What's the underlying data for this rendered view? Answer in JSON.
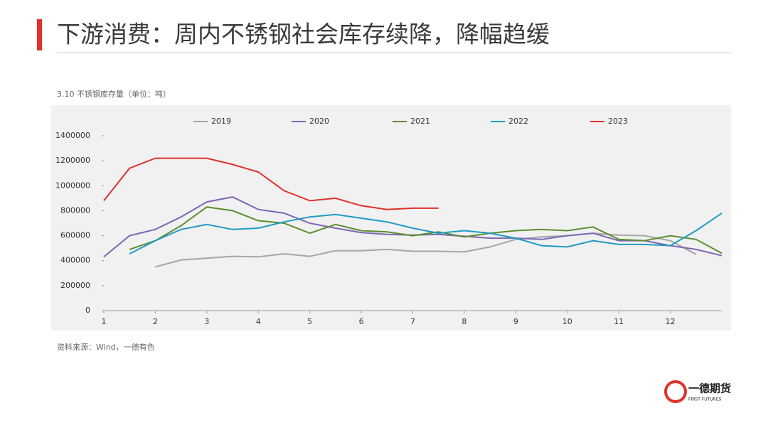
{
  "header": {
    "title": "下游消费：周内不锈钢社会库存续降，降幅趋缓"
  },
  "chart_data": {
    "type": "line",
    "title": "3.10 不锈钢库存量（单位：吨）",
    "x": [
      1,
      1.5,
      2,
      2.5,
      3,
      3.5,
      4,
      4.5,
      5,
      5.5,
      6,
      6.5,
      7,
      7.5,
      8,
      8.5,
      9,
      9.5,
      10,
      10.5,
      11,
      11.5,
      12,
      12.5,
      13
    ],
    "series": [
      {
        "name": "2019",
        "color": "#a6a6a6",
        "values": [
          null,
          null,
          350000,
          405000,
          420000,
          435000,
          430000,
          455000,
          435000,
          480000,
          480000,
          490000,
          475000,
          475000,
          470000,
          510000,
          570000,
          590000,
          600000,
          620000,
          605000,
          600000,
          560000,
          450000,
          null
        ]
      },
      {
        "name": "2020",
        "color": "#7b68b5",
        "values": [
          430000,
          600000,
          650000,
          750000,
          870000,
          910000,
          810000,
          780000,
          700000,
          660000,
          625000,
          610000,
          605000,
          610000,
          595000,
          580000,
          580000,
          570000,
          600000,
          620000,
          560000,
          560000,
          520000,
          490000,
          440000
        ]
      },
      {
        "name": "2021",
        "color": "#5b8f2e",
        "values": [
          null,
          490000,
          560000,
          680000,
          830000,
          800000,
          720000,
          700000,
          620000,
          690000,
          640000,
          630000,
          600000,
          630000,
          590000,
          620000,
          640000,
          650000,
          640000,
          670000,
          570000,
          560000,
          600000,
          570000,
          460000
        ]
      },
      {
        "name": "2022",
        "color": "#1f9bc4",
        "values": [
          null,
          455000,
          560000,
          650000,
          690000,
          650000,
          660000,
          710000,
          750000,
          770000,
          740000,
          710000,
          660000,
          620000,
          640000,
          620000,
          580000,
          520000,
          510000,
          560000,
          530000,
          530000,
          520000,
          640000,
          780000
        ]
      },
      {
        "name": "2023",
        "color": "#e0312b",
        "values": [
          880000,
          1140000,
          1220000,
          1220000,
          1220000,
          1170000,
          1110000,
          960000,
          880000,
          900000,
          840000,
          810000,
          820000,
          820000,
          null,
          null,
          null,
          null,
          null,
          null,
          null,
          null,
          null,
          null,
          null
        ]
      }
    ],
    "xlim": [
      1,
      13
    ],
    "xticks": [
      1,
      2,
      3,
      4,
      5,
      6,
      7,
      8,
      9,
      10,
      11,
      12
    ],
    "ylim": [
      0,
      1400000
    ],
    "yticks": [
      0,
      200000,
      400000,
      600000,
      800000,
      1000000,
      1200000,
      1400000
    ],
    "grid": false,
    "legend": "top"
  },
  "source": "资料来源：Wind，一德有色",
  "logo": {
    "name": "一德期货",
    "sub": "FIRST FUTURES"
  }
}
